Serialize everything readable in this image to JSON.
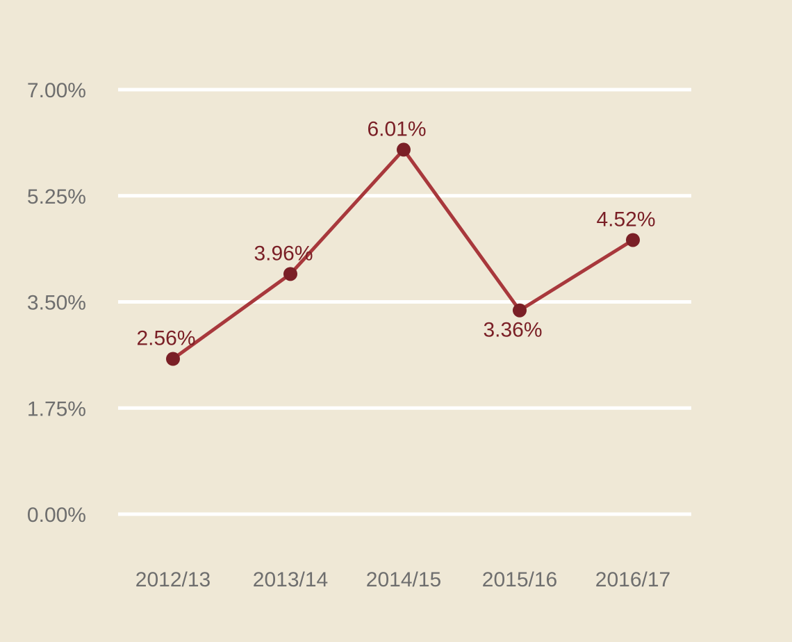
{
  "chart_data": {
    "type": "line",
    "title": "",
    "xlabel": "",
    "ylabel": "",
    "categories": [
      "2012/13",
      "2013/14",
      "2014/15",
      "2015/16",
      "2016/17"
    ],
    "series": [
      {
        "values": [
          2.56,
          3.96,
          6.01,
          3.36,
          4.52
        ],
        "labels": [
          "2.56%",
          "3.96%",
          "6.01%",
          "3.36%",
          "4.52%"
        ],
        "label_positions": [
          "above",
          "above",
          "above",
          "below",
          "above"
        ]
      }
    ],
    "y_ticks": [
      0,
      1.75,
      3.5,
      5.25,
      7
    ],
    "y_tick_labels": [
      "0.00%",
      "1.75%",
      "3.50%",
      "5.25%",
      "7.00%"
    ],
    "ylim": [
      0,
      7
    ],
    "grid": true,
    "legend": "none",
    "colors": {
      "background": "#efe8d6",
      "gridline": "#ffffff",
      "line": "#a8383c",
      "marker": "#7a1f26",
      "data_label": "#7a1f26",
      "tick_label": "#6e6e6e"
    }
  }
}
